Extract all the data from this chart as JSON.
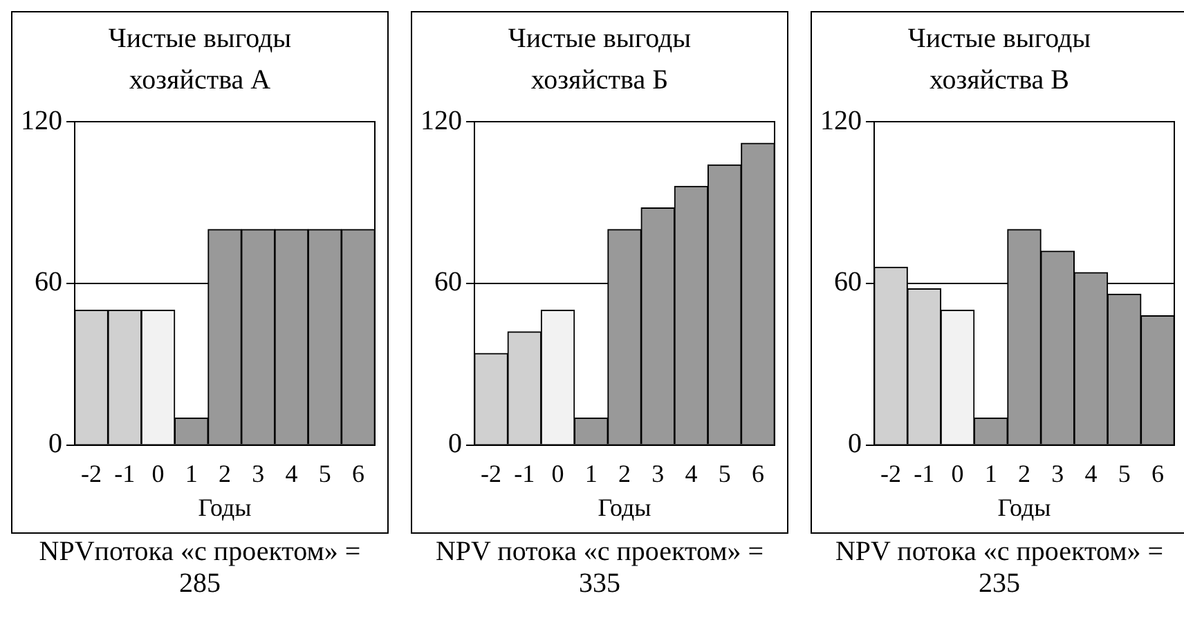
{
  "chart_data": [
    {
      "type": "bar",
      "title": "Чистые выгоды хозяйства А",
      "xlabel": "Годы",
      "categories": [
        "-2",
        "-1",
        "0",
        "1",
        "2",
        "3",
        "4",
        "5",
        "6"
      ],
      "values": [
        50,
        50,
        50,
        10,
        80,
        80,
        80,
        80,
        80
      ],
      "colors": [
        "#d0d0d0",
        "#d0d0d0",
        "#f2f2f2",
        "#999999",
        "#999999",
        "#999999",
        "#999999",
        "#999999",
        "#999999"
      ],
      "ylim": [
        0,
        120
      ],
      "yticks": [
        0,
        60,
        120
      ],
      "grid": "y",
      "annotations": [
        "NPVпотока «с проектом» = 285"
      ]
    },
    {
      "type": "bar",
      "title": "Чистые выгоды хозяйства Б",
      "xlabel": "Годы",
      "categories": [
        "-2",
        "-1",
        "0",
        "1",
        "2",
        "3",
        "4",
        "5",
        "6"
      ],
      "values": [
        34,
        42,
        50,
        10,
        80,
        88,
        96,
        104,
        112
      ],
      "colors": [
        "#d0d0d0",
        "#d0d0d0",
        "#f2f2f2",
        "#999999",
        "#999999",
        "#999999",
        "#999999",
        "#999999",
        "#999999"
      ],
      "ylim": [
        0,
        120
      ],
      "yticks": [
        0,
        60,
        120
      ],
      "grid": "y",
      "annotations": [
        "NPV потока «с проектом» = 335"
      ]
    },
    {
      "type": "bar",
      "title": "Чистые выгоды хозяйства В",
      "xlabel": "Годы",
      "categories": [
        "-2",
        "-1",
        "0",
        "1",
        "2",
        "3",
        "4",
        "5",
        "6"
      ],
      "values": [
        66,
        58,
        50,
        10,
        80,
        72,
        64,
        56,
        48
      ],
      "colors": [
        "#d0d0d0",
        "#d0d0d0",
        "#f2f2f2",
        "#999999",
        "#999999",
        "#999999",
        "#999999",
        "#999999",
        "#999999"
      ],
      "ylim": [
        0,
        120
      ],
      "yticks": [
        0,
        60,
        120
      ],
      "grid": "y",
      "annotations": [
        "NPV потока «с проектом» = 235"
      ]
    }
  ]
}
